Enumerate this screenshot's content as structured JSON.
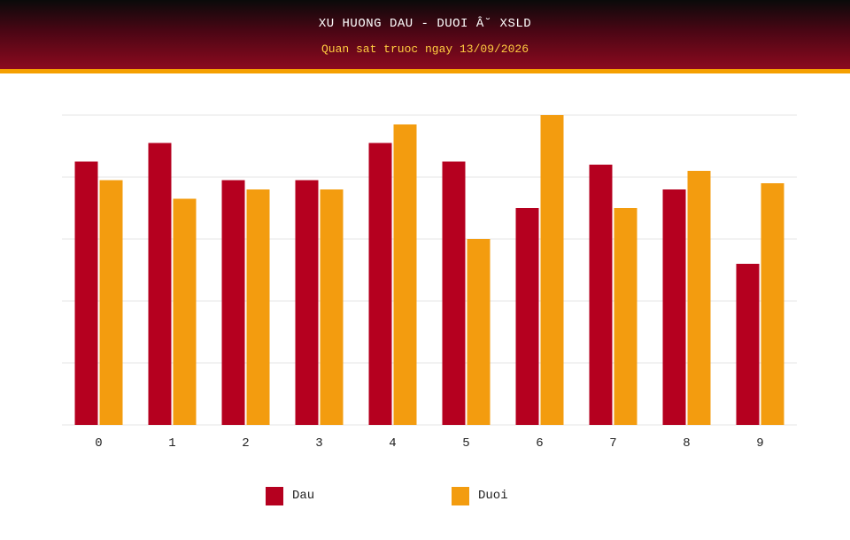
{
  "header": {
    "title": "XU HUONG DAU - DUOI Â˘ XSLD",
    "subtitle": "Quan sat truoc ngay 13/09/2026"
  },
  "colors": {
    "dau": "#b5001f",
    "duoi": "#f39c0f",
    "grid": "#e6e6e6",
    "tick_text": "#222222"
  },
  "legend": [
    {
      "label": "Dau",
      "color": "#b5001f"
    },
    {
      "label": "Duoi",
      "color": "#f39c0f"
    }
  ],
  "chart_data": {
    "type": "bar",
    "title": "XU HUONG DAU - DUOI Â˘ XSLD",
    "subtitle": "Quan sat truoc ngay 13/09/2026",
    "categories": [
      "0",
      "1",
      "2",
      "3",
      "4",
      "5",
      "6",
      "7",
      "8",
      "9"
    ],
    "series": [
      {
        "name": "Dau",
        "values": [
          8.5,
          9.1,
          7.9,
          7.9,
          9.1,
          8.5,
          7.0,
          8.4,
          7.6,
          5.2
        ]
      },
      {
        "name": "Duoi",
        "values": [
          7.9,
          7.3,
          7.6,
          7.6,
          9.7,
          6.0,
          10.0,
          7.0,
          8.2,
          7.8
        ]
      }
    ],
    "ylim": [
      0,
      10
    ],
    "y_tick_labels_visible": false,
    "grid": true,
    "legend_position": "bottom"
  }
}
